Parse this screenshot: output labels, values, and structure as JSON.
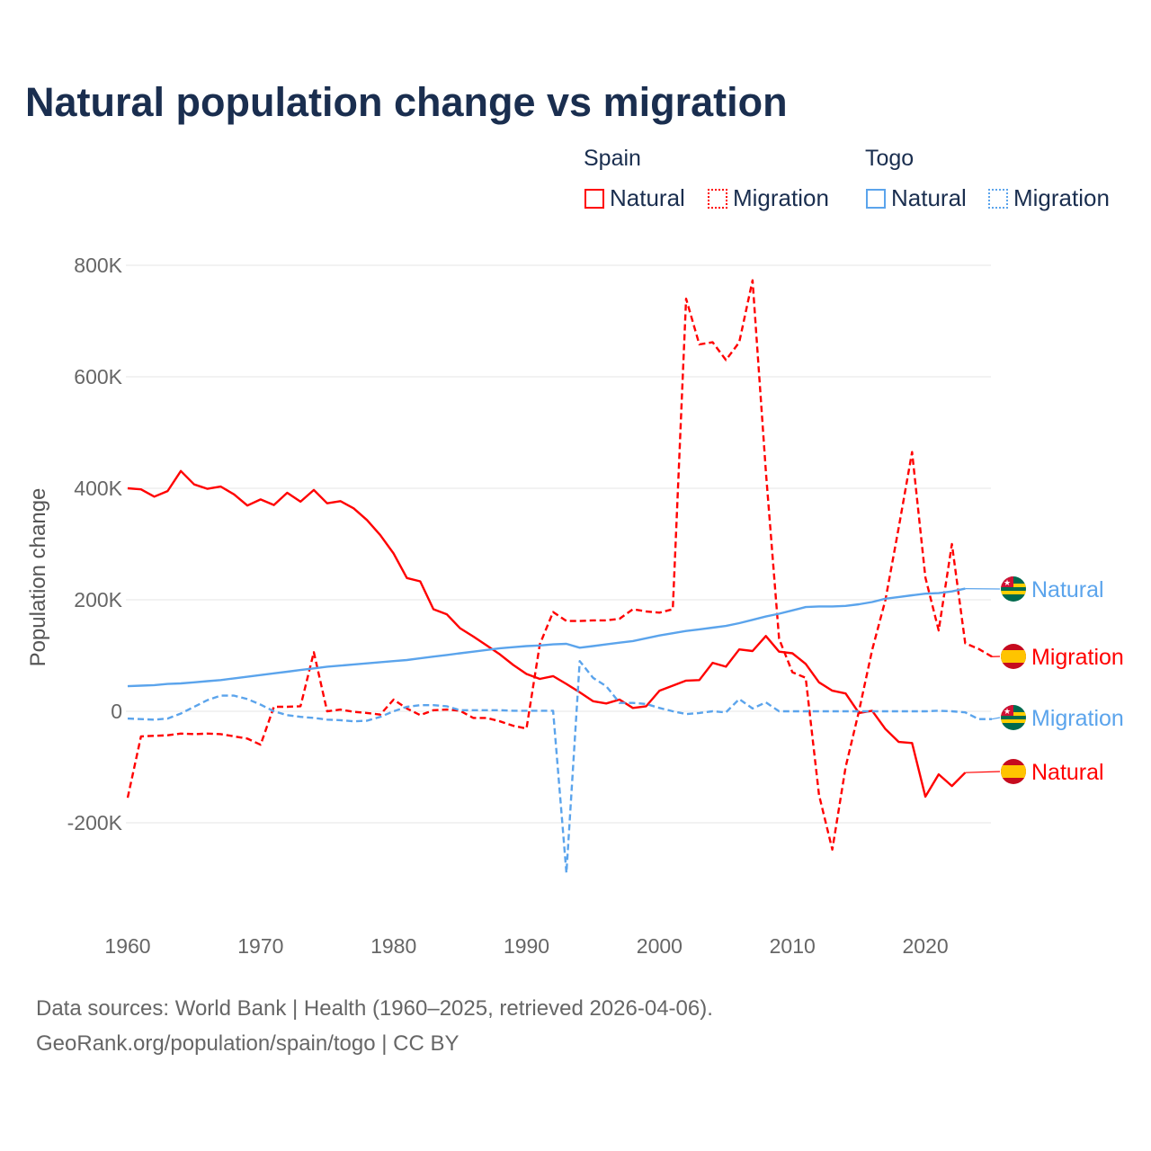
{
  "title": "Natural population change vs migration",
  "legend": {
    "groups": [
      {
        "name": "Spain",
        "items": [
          {
            "label": "Natural",
            "style": "solid",
            "color": "#ff0000"
          },
          {
            "label": "Migration",
            "style": "dotted",
            "color": "#ff0000"
          }
        ]
      },
      {
        "name": "Togo",
        "items": [
          {
            "label": "Natural",
            "style": "solid",
            "color": "#5ba4ec"
          },
          {
            "label": "Migration",
            "style": "dotted",
            "color": "#5ba4ec"
          }
        ]
      }
    ]
  },
  "footer": {
    "line1": "Data sources: World Bank | Health (1960–2025, retrieved 2026-04-06).",
    "line2": "GeoRank.org/population/spain/togo | CC BY"
  },
  "chart_data": {
    "type": "line",
    "title": "Natural population change vs migration",
    "xlabel": "",
    "ylabel": "Population change",
    "xlim": [
      1960,
      2025
    ],
    "ylim": [
      -300000,
      800000
    ],
    "xticks": [
      1960,
      1970,
      1980,
      1990,
      2000,
      2010,
      2020
    ],
    "xtick_labels": [
      "1960",
      "1970",
      "1980",
      "1990",
      "2000",
      "2010",
      "2020"
    ],
    "yticks": [
      -200000,
      0,
      200000,
      400000,
      600000,
      800000
    ],
    "ytick_labels": [
      "-200K",
      "0",
      "200K",
      "400K",
      "600K",
      "800K"
    ],
    "grid": true,
    "x_start": 1960,
    "series": [
      {
        "name": "Spain Natural",
        "end_label": "Natural",
        "country": "Spain",
        "color": "#ff0000",
        "dash": false,
        "unit": "K",
        "values": [
          400,
          398,
          385,
          395,
          431,
          407,
          399,
          403,
          389,
          369,
          380,
          370,
          392,
          376,
          397,
          373,
          377,
          364,
          343,
          316,
          283,
          239,
          233,
          183,
          174,
          149,
          134,
          118,
          102,
          83,
          67,
          58,
          63,
          49,
          34,
          18,
          14,
          21,
          6,
          9,
          37,
          46,
          55,
          56,
          87,
          80,
          111,
          108,
          135,
          107,
          104,
          85,
          52,
          37,
          32,
          -3,
          1,
          -32,
          -55,
          -57,
          -153,
          -113,
          -134,
          -110
        ]
      },
      {
        "name": "Spain Migration",
        "end_label": "Migration",
        "country": "Spain",
        "color": "#ff0000",
        "dash": true,
        "unit": "K",
        "values": [
          -155,
          -45,
          -44,
          -43,
          -40,
          -41,
          -40,
          -41,
          -45,
          -49,
          -60,
          8,
          8,
          9,
          106,
          0,
          3,
          -1,
          -3,
          -6,
          21,
          5,
          -7,
          2,
          3,
          1,
          -12,
          -12,
          -18,
          -26,
          -31,
          120,
          178,
          162,
          162,
          163,
          163,
          166,
          183,
          179,
          177,
          183,
          740,
          658,
          662,
          630,
          662,
          773,
          430,
          130,
          70,
          60,
          -150,
          -248,
          -100,
          0,
          110,
          200,
          330,
          465,
          240,
          145,
          300,
          122,
          112,
          98
        ]
      },
      {
        "name": "Togo Natural",
        "end_label": "Natural",
        "country": "Togo",
        "color": "#5ba4ec",
        "dash": false,
        "unit": "K",
        "values": [
          45,
          46,
          47,
          49,
          50,
          52,
          54,
          56,
          59,
          62,
          65,
          68,
          71,
          74,
          77,
          80,
          82,
          84,
          86,
          88,
          90,
          92,
          95,
          98,
          101,
          104,
          107,
          110,
          113,
          115,
          117,
          118,
          120,
          121,
          114,
          117,
          120,
          123,
          126,
          131,
          136,
          140,
          144,
          147,
          150,
          153,
          158,
          164,
          170,
          175,
          181,
          187,
          188,
          188,
          189,
          192,
          196,
          202,
          205,
          208,
          211,
          212,
          215,
          220
        ]
      },
      {
        "name": "Togo Migration",
        "end_label": "Migration",
        "country": "Togo",
        "color": "#5ba4ec",
        "dash": true,
        "unit": "K",
        "values": [
          -13,
          -14,
          -15,
          -13,
          -4,
          8,
          20,
          28,
          28,
          22,
          12,
          0,
          -7,
          -10,
          -12,
          -15,
          -16,
          -18,
          -17,
          -10,
          0,
          8,
          11,
          11,
          9,
          2,
          2,
          2,
          2,
          1,
          1,
          1,
          1,
          -290,
          90,
          60,
          45,
          15,
          15,
          13,
          6,
          0,
          -5,
          -3,
          0,
          -2,
          22,
          5,
          16,
          0,
          0,
          0,
          0,
          0,
          0,
          0,
          0,
          0,
          0,
          0,
          0,
          1,
          0,
          -2,
          -14,
          -14
        ]
      }
    ]
  }
}
